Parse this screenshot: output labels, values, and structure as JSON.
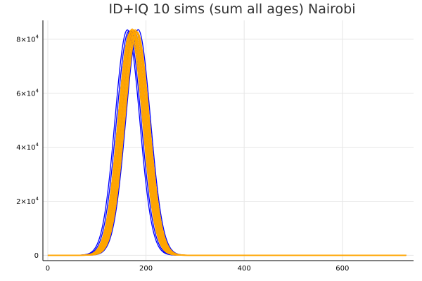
{
  "chart_data": {
    "type": "line",
    "title": "ID+IQ 10 sims (sum all ages) Nairobi",
    "xlabel": "",
    "ylabel": "",
    "xlim": [
      -10,
      745
    ],
    "ylim": [
      -2000,
      87000
    ],
    "x_ticks": [
      {
        "value": 0,
        "label": "0"
      },
      {
        "value": 200,
        "label": "200"
      },
      {
        "value": 400,
        "label": "400"
      },
      {
        "value": 600,
        "label": "600"
      }
    ],
    "y_ticks": [
      {
        "value": 0,
        "label": "0",
        "exp": ""
      },
      {
        "value": 20000,
        "label": "2×10",
        "exp": "4"
      },
      {
        "value": 40000,
        "label": "4×10",
        "exp": "4"
      },
      {
        "value": 60000,
        "label": "6×10",
        "exp": "4"
      },
      {
        "value": 80000,
        "label": "8×10",
        "exp": "4"
      }
    ],
    "grid": true,
    "legend": "none",
    "x_range": [
      0,
      730
    ],
    "series": [
      {
        "color": "#0000ff",
        "peak_x": 162,
        "peak_y": 83500,
        "spread": 25
      },
      {
        "color": "#0000ff",
        "peak_x": 165,
        "peak_y": 83000,
        "spread": 25
      },
      {
        "color": "#0000ff",
        "peak_x": 168,
        "peak_y": 83200,
        "spread": 25
      },
      {
        "color": "#0000ff",
        "peak_x": 176,
        "peak_y": 83100,
        "spread": 25
      },
      {
        "color": "#0000ff",
        "peak_x": 184,
        "peak_y": 83600,
        "spread": 25
      },
      {
        "color": "#8c1a8c",
        "peak_x": 175,
        "peak_y": 83300,
        "spread": 25
      },
      {
        "color": "#8c1a8c",
        "peak_x": 180,
        "peak_y": 83000,
        "spread": 25
      },
      {
        "color": "#c07030",
        "peak_x": 172,
        "peak_y": 83000,
        "spread": 25
      },
      {
        "color": "#ffa500",
        "peak_x": 168,
        "peak_y": 82600,
        "spread": 25
      },
      {
        "color": "#ffa500",
        "peak_x": 170,
        "peak_y": 83400,
        "spread": 25
      },
      {
        "color": "#ffa500",
        "peak_x": 172,
        "peak_y": 83800,
        "spread": 25
      },
      {
        "color": "#ffa500",
        "peak_x": 174,
        "peak_y": 83200,
        "spread": 25
      },
      {
        "color": "#ffa500",
        "peak_x": 176,
        "peak_y": 82800,
        "spread": 25
      },
      {
        "color": "#ffa500",
        "peak_x": 178,
        "peak_y": 83500,
        "spread": 25
      },
      {
        "color": "#ffa500",
        "peak_x": 180,
        "peak_y": 83000,
        "spread": 25
      },
      {
        "color": "#ffa500",
        "peak_x": 182,
        "peak_y": 82700,
        "spread": 25
      }
    ]
  }
}
